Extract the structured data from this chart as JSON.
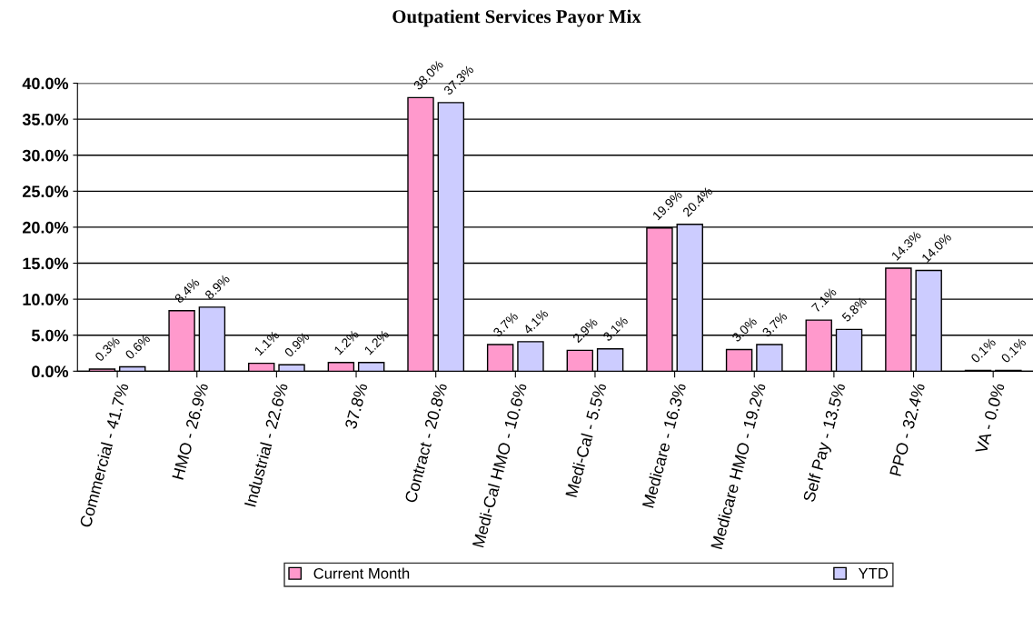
{
  "chart_data": {
    "type": "bar",
    "title": "Outpatient Services Payor Mix",
    "categories": [
      "Commercial - 41.7%",
      "HMO - 26.9%",
      "Industrial - 22.6%",
      "37.8%",
      "Contract - 20.8%",
      "Medi-Cal HMO - 10.6%",
      "Medi-Cal - 5.5%",
      "Medicare - 16.3%",
      "Medicare HMO - 19.2%",
      "Self Pay - 13.5%",
      "PPO - 32.4%",
      "VA - 0.0%"
    ],
    "series": [
      {
        "name": "Current Month",
        "color": "#ff99cc",
        "values": [
          0.3,
          8.4,
          1.1,
          1.2,
          38.0,
          3.7,
          2.9,
          19.9,
          3.0,
          7.1,
          14.3,
          0.1
        ],
        "value_labels": [
          "0.3%",
          "8.4%",
          "1.1%",
          "1.2%",
          "38.0%",
          "3.7%",
          "2.9%",
          "19.9%",
          "3.0%",
          "7.1%",
          "14.3%",
          "0.1%"
        ]
      },
      {
        "name": "YTD",
        "color": "#ccccff",
        "values": [
          0.6,
          8.9,
          0.9,
          1.2,
          37.3,
          4.1,
          3.1,
          20.4,
          3.7,
          5.8,
          14.0,
          0.1
        ],
        "value_labels": [
          "0.6%",
          "8.9%",
          "0.9%",
          "1.2%",
          "37.3%",
          "4.1%",
          "3.1%",
          "20.4%",
          "3.7%",
          "5.8%",
          "14.0%",
          "0.1%"
        ]
      }
    ],
    "ylim": [
      0,
      40
    ],
    "yticks": [
      {
        "value": 0,
        "label": "0.0%"
      },
      {
        "value": 5,
        "label": "5.0%"
      },
      {
        "value": 10,
        "label": "10.0%"
      },
      {
        "value": 15,
        "label": "15.0%"
      },
      {
        "value": 20,
        "label": "20.0%"
      },
      {
        "value": 25,
        "label": "25.0%"
      },
      {
        "value": 30,
        "label": "30.0%"
      },
      {
        "value": 35,
        "label": "35.0%"
      },
      {
        "value": 40,
        "label": "40.0%"
      }
    ],
    "grid": "y",
    "legend": "bottom"
  }
}
